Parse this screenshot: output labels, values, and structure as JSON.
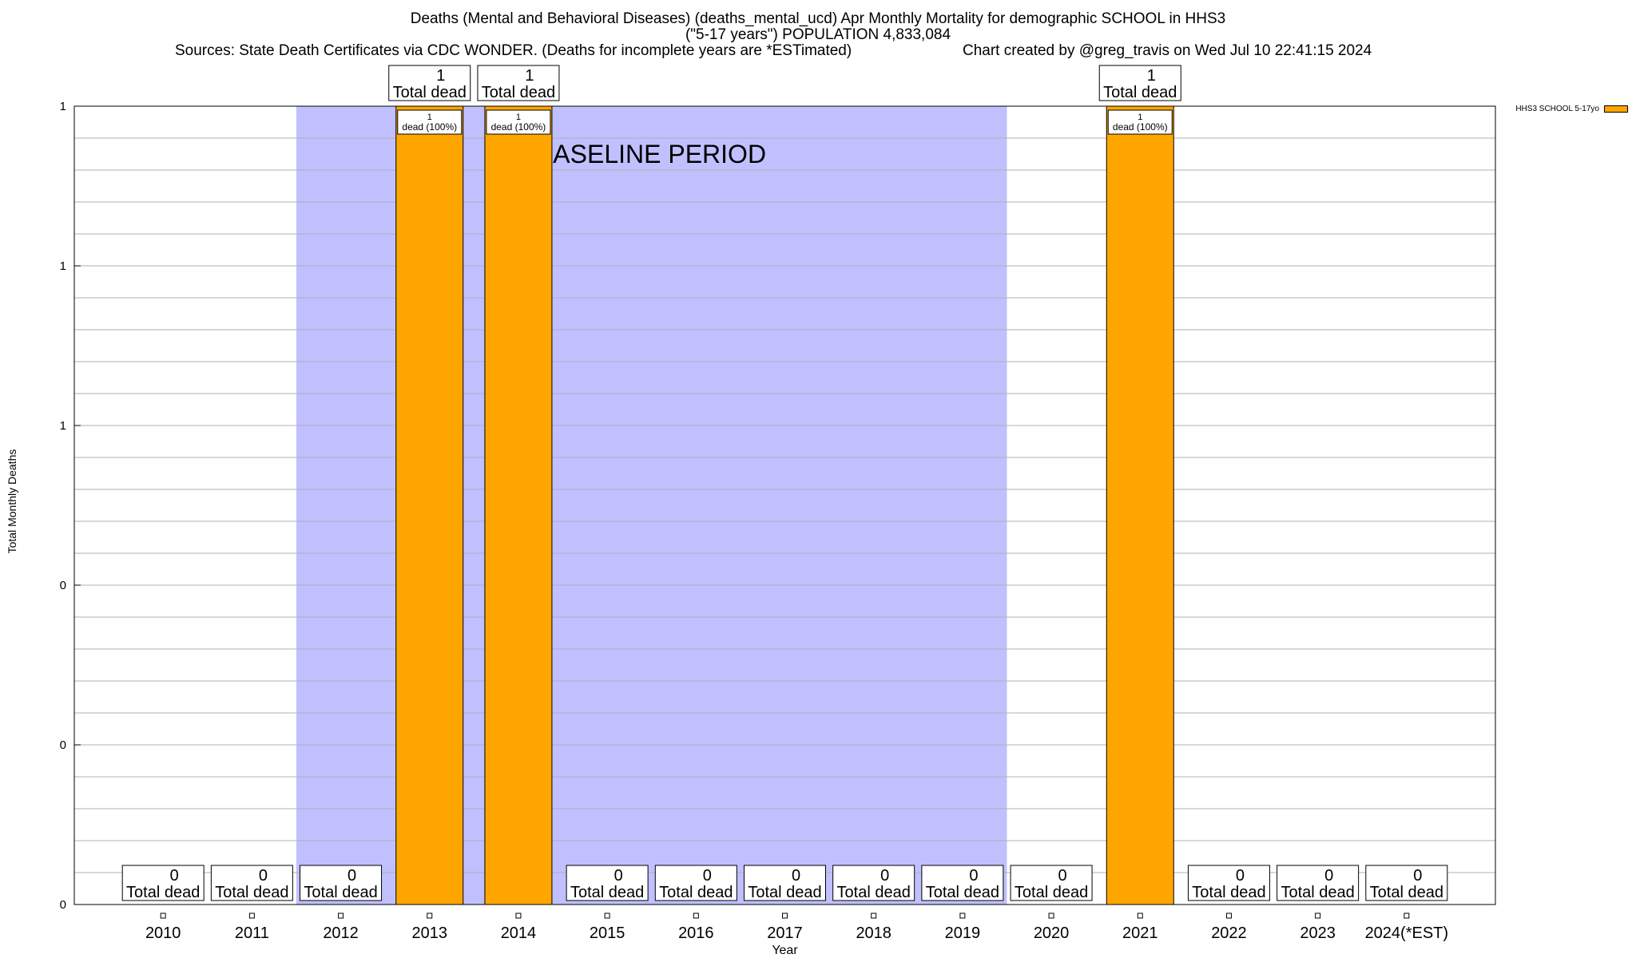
{
  "header": {
    "title_line1": "Deaths (Mental and Behavioral Diseases) (deaths_mental_ucd) Apr Monthly Mortality for demographic SCHOOL in HHS3",
    "title_line2": "(\"5-17 years\") POPULATION 4,833,084",
    "sources": "Sources: State Death Certificates via CDC WONDER. (Deaths for incomplete years are *ESTimated)",
    "credit": "Chart created by @greg_travis on Wed Jul 10 22:41:15 2024"
  },
  "chart_data": {
    "type": "bar",
    "title": "Deaths (Mental and Behavioral Diseases) (deaths_mental_ucd) Apr Monthly Mortality for demographic SCHOOL in HHS3",
    "xlabel": "Year",
    "ylabel": "Total Monthly Deaths",
    "categories": [
      "2010",
      "2011",
      "2012",
      "2013",
      "2014",
      "2015",
      "2016",
      "2017",
      "2018",
      "2019",
      "2020",
      "2021",
      "2022",
      "2023",
      "2024(*EST)"
    ],
    "series": [
      {
        "name": "HHS3 SCHOOL 5-17yo",
        "color": "#ffa500",
        "values": [
          0,
          0,
          0,
          1,
          1,
          0,
          0,
          0,
          0,
          0,
          0,
          1,
          0,
          0,
          0
        ]
      }
    ],
    "ylim": [
      0,
      1
    ],
    "y_tick_labels": [
      "0",
      "0",
      "0",
      "1",
      "1",
      "1"
    ],
    "grid": true,
    "legend_position": "top-right",
    "baseline_period": {
      "from": "2012",
      "to": "2019",
      "label": "BASELINE PERIOD",
      "color": "#c0c0ff"
    },
    "top_label_suffix": "Total dead",
    "inner_label_suffix": "dead (100%)"
  },
  "legend": {
    "label": "HHS3 SCHOOL 5-17yo"
  }
}
